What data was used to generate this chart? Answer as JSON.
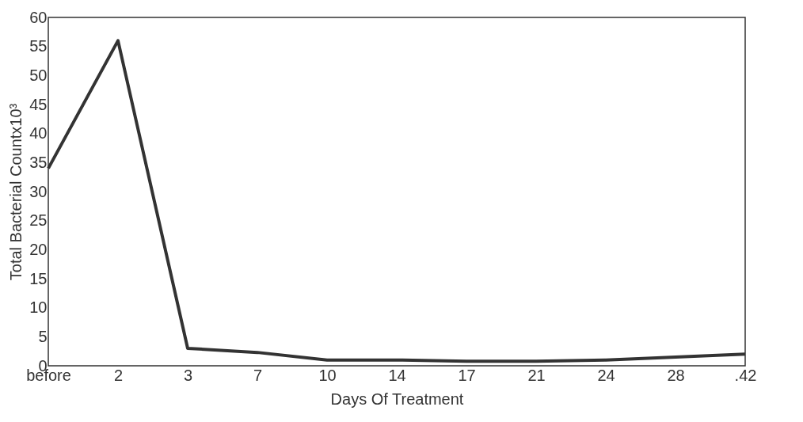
{
  "chart_data": {
    "type": "line",
    "xlabel": "Days Of Treatment",
    "ylabel": "Total Bacterial Countx10³",
    "categories": [
      "before",
      "2",
      "3",
      "7",
      "10",
      "14",
      "17",
      "21",
      "24",
      "28",
      ".42"
    ],
    "series": [
      {
        "color": "#333333",
        "values": [
          34,
          56,
          3,
          2.3,
          1,
          1,
          0.8,
          0.8,
          1,
          1.5,
          2
        ]
      }
    ],
    "ylim": [
      0,
      60
    ],
    "yticks": [
      0,
      5,
      10,
      15,
      20,
      25,
      30,
      35,
      40,
      45,
      50,
      55,
      60
    ],
    "grid": false,
    "marker": "none",
    "line_style": "solid"
  }
}
